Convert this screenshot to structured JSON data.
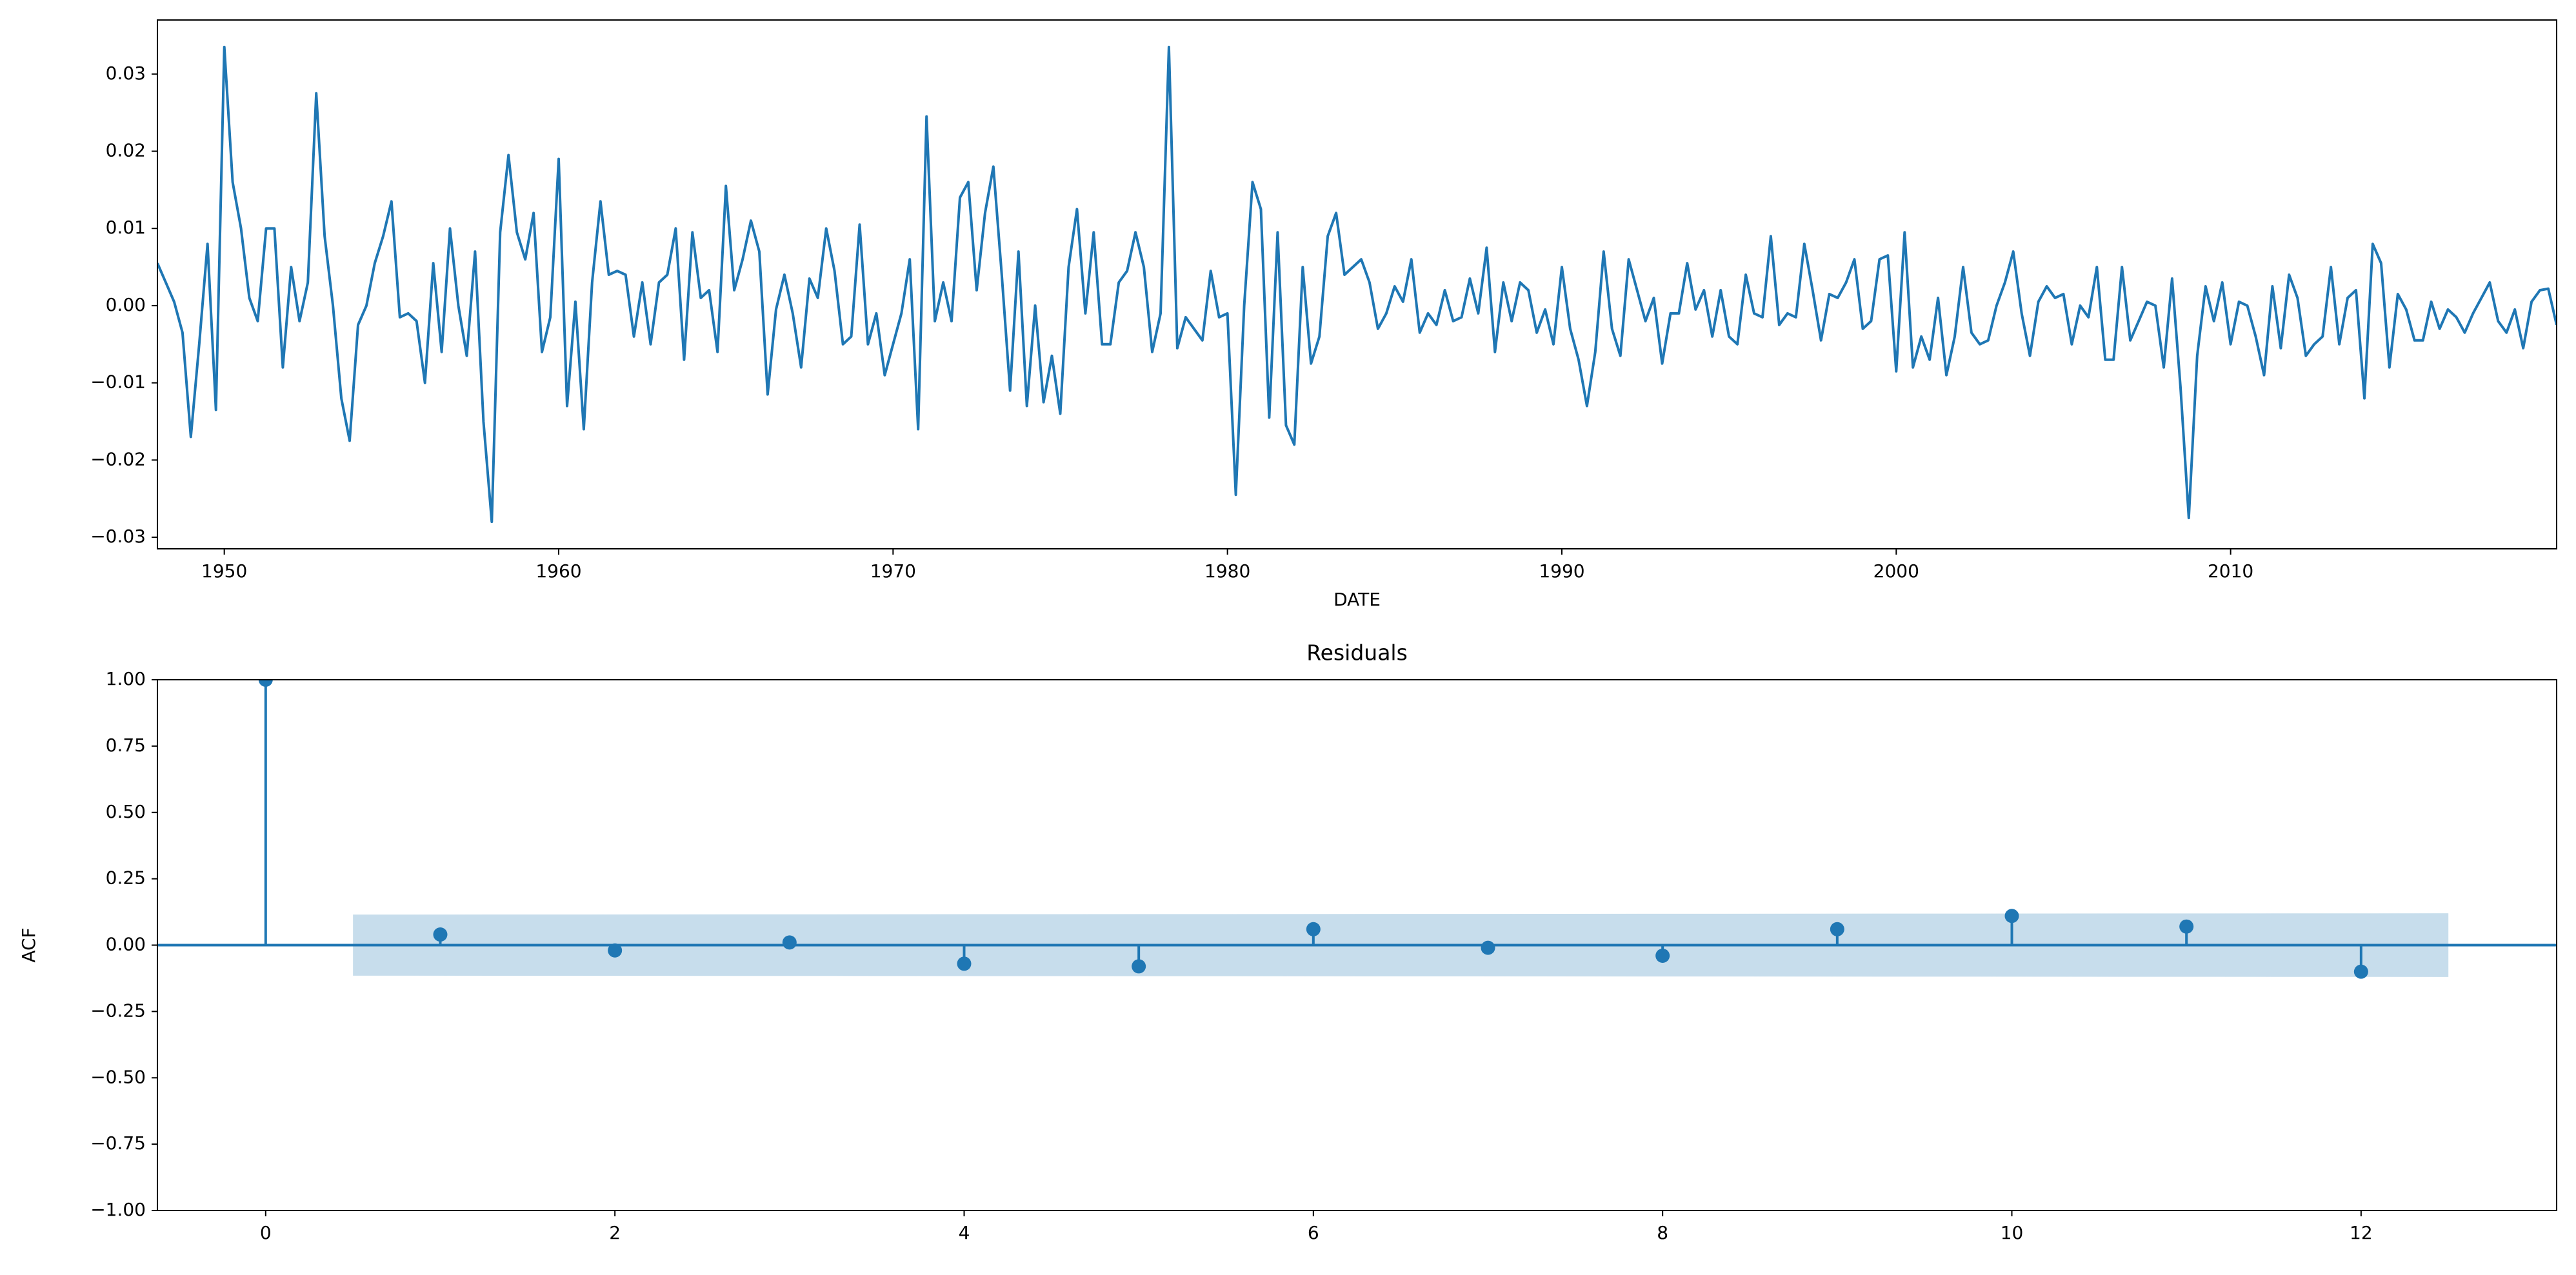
{
  "chart_data": [
    {
      "type": "line",
      "xlabel": "DATE",
      "color": "#1f77b4",
      "x": [
        1948,
        1948.25,
        1948.5,
        1948.75,
        1949,
        1949.25,
        1949.5,
        1949.75,
        1950,
        1950.25,
        1950.5,
        1950.75,
        1951,
        1951.25,
        1951.5,
        1951.75,
        1952,
        1952.25,
        1952.5,
        1952.75,
        1953,
        1953.25,
        1953.5,
        1953.75,
        1954,
        1954.25,
        1954.5,
        1954.75,
        1955,
        1955.25,
        1955.5,
        1955.75,
        1956,
        1956.25,
        1956.5,
        1956.75,
        1957,
        1957.25,
        1957.5,
        1957.75,
        1958,
        1958.25,
        1958.5,
        1958.75,
        1959,
        1959.25,
        1959.5,
        1959.75,
        1960,
        1960.25,
        1960.5,
        1960.75,
        1961,
        1961.25,
        1961.5,
        1961.75,
        1962,
        1962.25,
        1962.5,
        1962.75,
        1963,
        1963.25,
        1963.5,
        1963.75,
        1964,
        1964.25,
        1964.5,
        1964.75,
        1965,
        1965.25,
        1965.5,
        1965.75,
        1966,
        1966.25,
        1966.5,
        1966.75,
        1967,
        1967.25,
        1967.5,
        1967.75,
        1968,
        1968.25,
        1968.5,
        1968.75,
        1969,
        1969.25,
        1969.5,
        1969.75,
        1970,
        1970.25,
        1970.5,
        1970.75,
        1971,
        1971.25,
        1971.5,
        1971.75,
        1972,
        1972.25,
        1972.5,
        1972.75,
        1973,
        1973.25,
        1973.5,
        1973.75,
        1974,
        1974.25,
        1974.5,
        1974.75,
        1975,
        1975.25,
        1975.5,
        1975.75,
        1976,
        1976.25,
        1976.5,
        1976.75,
        1977,
        1977.25,
        1977.5,
        1977.75,
        1978,
        1978.25,
        1978.5,
        1978.75,
        1979,
        1979.25,
        1979.5,
        1979.75,
        1980,
        1980.25,
        1980.5,
        1980.75,
        1981,
        1981.25,
        1981.5,
        1981.75,
        1982,
        1982.25,
        1982.5,
        1982.75,
        1983,
        1983.25,
        1983.5,
        1983.75,
        1984,
        1984.25,
        1984.5,
        1984.75,
        1985,
        1985.25,
        1985.5,
        1985.75,
        1986,
        1986.25,
        1986.5,
        1986.75,
        1987,
        1987.25,
        1987.5,
        1987.75,
        1988,
        1988.25,
        1988.5,
        1988.75,
        1989,
        1989.25,
        1989.5,
        1989.75,
        1990,
        1990.25,
        1990.5,
        1990.75,
        1991,
        1991.25,
        1991.5,
        1991.75,
        1992,
        1992.25,
        1992.5,
        1992.75,
        1993,
        1993.25,
        1993.5,
        1993.75,
        1994,
        1994.25,
        1994.5,
        1994.75,
        1995,
        1995.25,
        1995.5,
        1995.75,
        1996,
        1996.25,
        1996.5,
        1996.75,
        1997,
        1997.25,
        1997.5,
        1997.75,
        1998,
        1998.25,
        1998.5,
        1998.75,
        1999,
        1999.25,
        1999.5,
        1999.75,
        2000,
        2000.25,
        2000.5,
        2000.75,
        2001,
        2001.25,
        2001.5,
        2001.75,
        2002,
        2002.25,
        2002.5,
        2002.75,
        2003,
        2003.25,
        2003.5,
        2003.75,
        2004,
        2004.25,
        2004.5,
        2004.75,
        2005,
        2005.25,
        2005.5,
        2005.75,
        2006,
        2006.25,
        2006.5,
        2006.75,
        2007,
        2007.25,
        2007.5,
        2007.75,
        2008,
        2008.25,
        2008.5,
        2008.75,
        2009,
        2009.25,
        2009.5,
        2009.75,
        2010,
        2010.25,
        2010.5,
        2010.75,
        2011,
        2011.25,
        2011.5,
        2011.75,
        2012,
        2012.25,
        2012.5,
        2012.75,
        2013,
        2013.25,
        2013.5,
        2013.75,
        2014,
        2014.25,
        2014.5,
        2014.75,
        2015,
        2015.25,
        2015.5,
        2015.75,
        2016,
        2016.25,
        2016.5,
        2016.75,
        2017,
        2017.25,
        2017.5,
        2017.75,
        2018,
        2018.25,
        2018.5,
        2018.75,
        2019,
        2019.25,
        2019.5,
        2019.75
      ],
      "values": [
        0.0055,
        0.003,
        0.0005,
        -0.0035,
        -0.017,
        -0.005,
        0.008,
        -0.0135,
        0.0335,
        0.016,
        0.01,
        0.001,
        -0.002,
        0.01,
        0.01,
        -0.008,
        0.005,
        -0.002,
        0.003,
        0.0275,
        0.009,
        0.0,
        -0.012,
        -0.0175,
        -0.0025,
        0.0,
        0.0055,
        0.009,
        0.0135,
        -0.0015,
        -0.001,
        -0.002,
        -0.01,
        0.0055,
        -0.006,
        0.01,
        0.0,
        -0.0065,
        0.007,
        -0.015,
        -0.028,
        0.0095,
        0.0195,
        0.0095,
        0.006,
        0.012,
        -0.006,
        -0.0015,
        0.019,
        -0.013,
        0.0005,
        -0.016,
        0.003,
        0.0135,
        0.004,
        0.0045,
        0.004,
        -0.004,
        0.003,
        -0.005,
        0.003,
        0.004,
        0.01,
        -0.007,
        0.0095,
        0.001,
        0.002,
        -0.006,
        0.0155,
        0.002,
        0.006,
        0.011,
        0.007,
        -0.0115,
        -0.0005,
        0.004,
        -0.001,
        -0.008,
        0.0035,
        0.001,
        0.01,
        0.0045,
        -0.005,
        -0.004,
        0.0105,
        -0.005,
        -0.001,
        -0.009,
        -0.005,
        -0.001,
        0.006,
        -0.016,
        0.0245,
        -0.002,
        0.003,
        -0.002,
        0.014,
        0.016,
        0.002,
        0.012,
        0.018,
        0.004,
        -0.011,
        0.007,
        -0.013,
        0.0,
        -0.0125,
        -0.0065,
        -0.014,
        0.005,
        0.0125,
        -0.001,
        0.0095,
        -0.005,
        -0.005,
        0.003,
        0.0045,
        0.0095,
        0.005,
        -0.006,
        -0.001,
        0.0335,
        -0.0055,
        -0.0015,
        -0.003,
        -0.0045,
        0.0045,
        -0.0015,
        -0.001,
        -0.0245,
        0.0,
        0.016,
        0.0125,
        -0.0145,
        0.0095,
        -0.0155,
        -0.018,
        0.005,
        -0.0075,
        -0.004,
        0.009,
        0.012,
        0.004,
        0.005,
        0.006,
        0.003,
        -0.003,
        -0.001,
        0.0025,
        0.0005,
        0.006,
        -0.0035,
        -0.001,
        -0.0025,
        0.002,
        -0.002,
        -0.0015,
        0.0035,
        -0.001,
        0.0075,
        -0.006,
        0.003,
        -0.002,
        0.003,
        0.002,
        -0.0035,
        -0.0005,
        -0.005,
        0.005,
        -0.003,
        -0.007,
        -0.013,
        -0.006,
        0.007,
        -0.003,
        -0.0065,
        0.006,
        0.002,
        -0.002,
        0.001,
        -0.0075,
        -0.001,
        -0.001,
        0.0055,
        -0.0005,
        0.002,
        -0.004,
        0.002,
        -0.004,
        -0.005,
        0.004,
        -0.001,
        -0.0015,
        0.009,
        -0.0025,
        -0.001,
        -0.0015,
        0.008,
        0.002,
        -0.0045,
        0.0015,
        0.001,
        0.003,
        0.006,
        -0.003,
        -0.002,
        0.006,
        0.0065,
        -0.0085,
        0.0095,
        -0.008,
        -0.004,
        -0.007,
        0.001,
        -0.009,
        -0.004,
        0.005,
        -0.0035,
        -0.005,
        -0.0045,
        0.0,
        0.003,
        0.007,
        -0.001,
        -0.0065,
        0.0005,
        0.0025,
        0.001,
        0.0015,
        -0.005,
        0.0,
        -0.0015,
        0.005,
        -0.007,
        -0.007,
        0.005,
        -0.0045,
        -0.002,
        0.0005,
        0.0,
        -0.008,
        0.0035,
        -0.0105,
        -0.0275,
        -0.0065,
        0.0025,
        -0.002,
        0.003,
        -0.005,
        0.0005,
        0.0,
        -0.004,
        -0.009,
        0.0025,
        -0.0055,
        0.004,
        0.001,
        -0.0065,
        -0.005,
        -0.004,
        0.005,
        -0.005,
        0.001,
        0.002,
        -0.012,
        0.008,
        0.0055,
        -0.008,
        0.0015,
        -0.0005,
        -0.0045,
        -0.0045,
        0.0005,
        -0.003,
        -0.0005,
        -0.0015,
        -0.0035,
        -0.001,
        0.001,
        0.003,
        -0.002,
        -0.0035,
        -0.0005,
        -0.0055,
        0.0005,
        0.002,
        0.0022,
        -0.0025
      ],
      "xlim": [
        1948,
        2019.75
      ],
      "xticks": [
        1950,
        1960,
        1970,
        1980,
        1990,
        2000,
        2010
      ],
      "ylim": [
        -0.0315,
        0.037
      ],
      "yticks": [
        {
          "value": -0.03,
          "label": "−0.03"
        },
        {
          "value": -0.02,
          "label": "−0.02"
        },
        {
          "value": -0.01,
          "label": "−0.01"
        },
        {
          "value": 0,
          "label": "0.00"
        },
        {
          "value": 0.01,
          "label": "0.01"
        },
        {
          "value": 0.02,
          "label": "0.02"
        },
        {
          "value": 0.03,
          "label": "0.03"
        }
      ]
    },
    {
      "type": "stem",
      "title": "Residuals",
      "ylabel": "ACF",
      "color": "#1f77b4",
      "x": [
        0,
        1,
        2,
        3,
        4,
        5,
        6,
        7,
        8,
        9,
        10,
        11,
        12
      ],
      "values": [
        1.0,
        0.04,
        -0.02,
        0.01,
        -0.07,
        -0.08,
        0.06,
        -0.01,
        -0.04,
        0.06,
        0.11,
        0.07,
        -0.1
      ],
      "confidence_band": {
        "x": [
          0.5,
          12.5
        ],
        "upper": [
          0.115,
          0.12
        ],
        "lower": [
          -0.115,
          -0.12
        ],
        "color": "#1f77b4"
      },
      "xlim": [
        -0.62,
        13.12
      ],
      "xticks": [
        0,
        2,
        4,
        6,
        8,
        10,
        12
      ],
      "ylim": [
        -1,
        1
      ],
      "yticks": [
        {
          "value": -1,
          "label": "−1.00"
        },
        {
          "value": -0.75,
          "label": "−0.75"
        },
        {
          "value": -0.5,
          "label": "−0.50"
        },
        {
          "value": -0.25,
          "label": "−0.25"
        },
        {
          "value": 0,
          "label": "0.00"
        },
        {
          "value": 0.25,
          "label": "0.25"
        },
        {
          "value": 0.5,
          "label": "0.50"
        },
        {
          "value": 0.75,
          "label": "0.75"
        },
        {
          "value": 1,
          "label": "1.00"
        }
      ]
    }
  ]
}
